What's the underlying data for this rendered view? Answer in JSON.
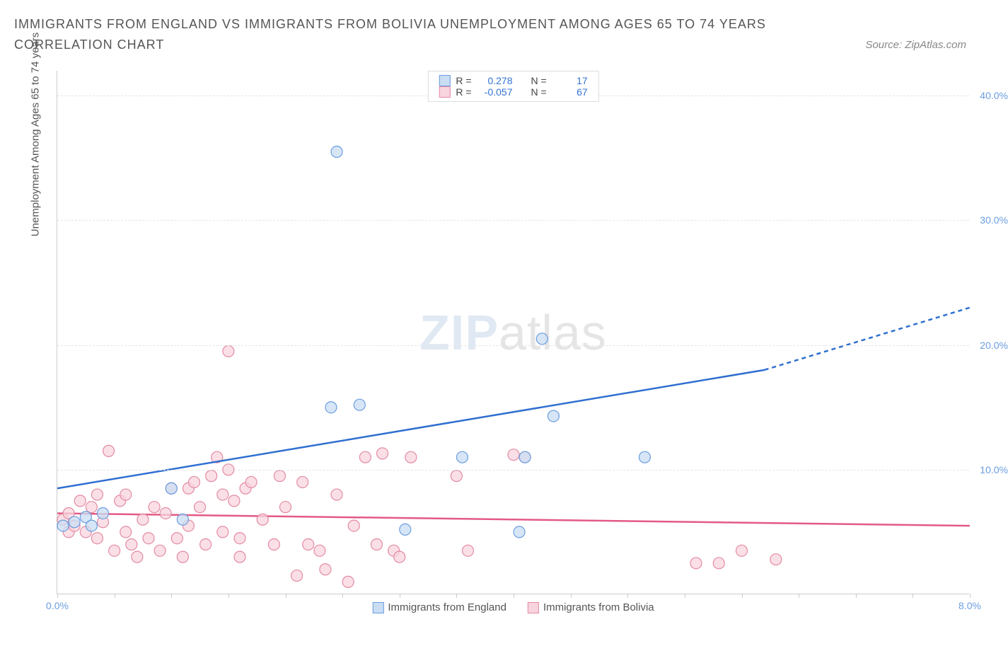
{
  "title": "IMMIGRANTS FROM ENGLAND VS IMMIGRANTS FROM BOLIVIA UNEMPLOYMENT AMONG AGES 65 TO 74 YEARS CORRELATION CHART",
  "source": "Source: ZipAtlas.com",
  "y_axis_label": "Unemployment Among Ages 65 to 74 years",
  "watermark_a": "ZIP",
  "watermark_b": "atlas",
  "chart": {
    "type": "scatter",
    "xlim": [
      0,
      8
    ],
    "ylim": [
      0,
      42
    ],
    "y_ticks": [
      10,
      20,
      30,
      40
    ],
    "y_tick_labels": [
      "10.0%",
      "20.0%",
      "30.0%",
      "40.0%"
    ],
    "x_ticks": [
      0,
      8
    ],
    "x_tick_labels": [
      "0.0%",
      "8.0%"
    ],
    "x_minor_ticks": [
      0,
      0.5,
      1,
      1.5,
      2,
      2.5,
      3,
      3.5,
      4,
      4.5,
      5,
      5.5,
      6,
      6.5,
      7,
      7.5,
      8
    ],
    "grid_color": "#e5e5e5",
    "background_color": "#ffffff",
    "marker_radius": 8,
    "marker_stroke_width": 1.2,
    "line_width": 2.5,
    "series": [
      {
        "name": "Immigrants from England",
        "fill": "#c9ddf3",
        "stroke": "#6a9de0",
        "line_color": "#2f6fd0",
        "R": "0.278",
        "N": "17",
        "trend": {
          "x1": 0,
          "y1": 8.5,
          "x2": 6.2,
          "y2": 18.0,
          "x2_dash": 8.0,
          "y2_dash": 23.0
        },
        "points": [
          [
            0.05,
            5.5
          ],
          [
            0.15,
            5.8
          ],
          [
            0.25,
            6.2
          ],
          [
            0.3,
            5.5
          ],
          [
            0.4,
            6.5
          ],
          [
            1.0,
            8.5
          ],
          [
            1.1,
            6.0
          ],
          [
            2.45,
            35.5
          ],
          [
            2.4,
            15.0
          ],
          [
            2.65,
            15.2
          ],
          [
            3.05,
            5.2
          ],
          [
            3.55,
            11.0
          ],
          [
            4.05,
            5.0
          ],
          [
            4.25,
            20.5
          ],
          [
            4.35,
            14.3
          ],
          [
            5.15,
            11.0
          ],
          [
            4.1,
            11.0
          ]
        ]
      },
      {
        "name": "Immigrants from Bolivia",
        "fill": "#f8d5de",
        "stroke": "#e38aa3",
        "line_color": "#e35a85",
        "R": "-0.057",
        "N": "67",
        "trend": {
          "x1": 0,
          "y1": 6.5,
          "x2": 8.0,
          "y2": 5.5,
          "x2_dash": 8.0,
          "y2_dash": 5.5
        },
        "points": [
          [
            0.05,
            6.0
          ],
          [
            0.1,
            5.0
          ],
          [
            0.1,
            6.5
          ],
          [
            0.15,
            5.5
          ],
          [
            0.2,
            7.5
          ],
          [
            0.25,
            5.0
          ],
          [
            0.3,
            7.0
          ],
          [
            0.35,
            8.0
          ],
          [
            0.35,
            4.5
          ],
          [
            0.4,
            5.8
          ],
          [
            0.45,
            11.5
          ],
          [
            0.5,
            3.5
          ],
          [
            0.55,
            7.5
          ],
          [
            0.6,
            5.0
          ],
          [
            0.6,
            8.0
          ],
          [
            0.65,
            4.0
          ],
          [
            0.7,
            3.0
          ],
          [
            0.75,
            6.0
          ],
          [
            0.8,
            4.5
          ],
          [
            0.85,
            7.0
          ],
          [
            0.9,
            3.5
          ],
          [
            0.95,
            6.5
          ],
          [
            1.0,
            8.5
          ],
          [
            1.05,
            4.5
          ],
          [
            1.1,
            3.0
          ],
          [
            1.15,
            5.5
          ],
          [
            1.15,
            8.5
          ],
          [
            1.2,
            9.0
          ],
          [
            1.25,
            7.0
          ],
          [
            1.3,
            4.0
          ],
          [
            1.35,
            9.5
          ],
          [
            1.4,
            11.0
          ],
          [
            1.45,
            8.0
          ],
          [
            1.45,
            5.0
          ],
          [
            1.5,
            19.5
          ],
          [
            1.5,
            10.0
          ],
          [
            1.55,
            7.5
          ],
          [
            1.6,
            4.5
          ],
          [
            1.6,
            3.0
          ],
          [
            1.65,
            8.5
          ],
          [
            1.7,
            9.0
          ],
          [
            1.8,
            6.0
          ],
          [
            1.9,
            4.0
          ],
          [
            1.95,
            9.5
          ],
          [
            2.0,
            7.0
          ],
          [
            2.1,
            1.5
          ],
          [
            2.15,
            9.0
          ],
          [
            2.2,
            4.0
          ],
          [
            2.3,
            3.5
          ],
          [
            2.35,
            2.0
          ],
          [
            2.45,
            8.0
          ],
          [
            2.55,
            1.0
          ],
          [
            2.6,
            5.5
          ],
          [
            2.7,
            11.0
          ],
          [
            2.8,
            4.0
          ],
          [
            2.85,
            11.3
          ],
          [
            2.95,
            3.5
          ],
          [
            3.0,
            3.0
          ],
          [
            3.1,
            11.0
          ],
          [
            3.5,
            9.5
          ],
          [
            3.6,
            3.5
          ],
          [
            4.0,
            11.2
          ],
          [
            4.1,
            11.0
          ],
          [
            5.6,
            2.5
          ],
          [
            5.8,
            2.5
          ],
          [
            6.3,
            2.8
          ],
          [
            6.0,
            3.5
          ]
        ]
      }
    ]
  },
  "legend_top": {
    "r_label": "R =",
    "n_label": "N ="
  },
  "legend_bottom": {
    "series_a": "Immigrants from England",
    "series_b": "Immigrants from Bolivia"
  }
}
